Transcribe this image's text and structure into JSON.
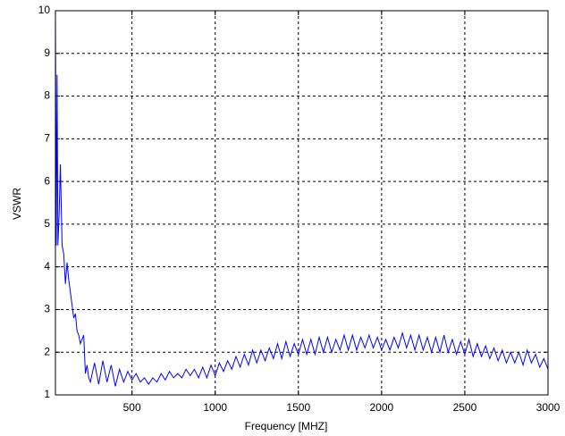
{
  "chart_data": {
    "type": "line",
    "x_label": "Frequency [MHZ]",
    "y_label": "VSWR",
    "xlim": [
      40,
      3000
    ],
    "ylim": [
      1,
      10
    ],
    "xticks": [
      500,
      1000,
      1500,
      2000,
      2500,
      3000
    ],
    "yticks": [
      1,
      2,
      3,
      4,
      5,
      6,
      7,
      8,
      9,
      10
    ],
    "grid": true,
    "series": [
      {
        "color": "#0000ff",
        "x": [
          40,
          45,
          50,
          55,
          62,
          70,
          80,
          90,
          100,
          110,
          120,
          130,
          140,
          150,
          160,
          170,
          180,
          190,
          200,
          210,
          220,
          230,
          240,
          250,
          275,
          300,
          325,
          350,
          375,
          400,
          425,
          450,
          475,
          500,
          525,
          550,
          575,
          600,
          625,
          650,
          675,
          700,
          725,
          750,
          775,
          800,
          825,
          850,
          875,
          900,
          925,
          950,
          975,
          1000,
          1025,
          1050,
          1075,
          1100,
          1125,
          1150,
          1175,
          1200,
          1225,
          1250,
          1275,
          1300,
          1325,
          1350,
          1375,
          1400,
          1425,
          1450,
          1475,
          1500,
          1525,
          1550,
          1575,
          1600,
          1625,
          1650,
          1675,
          1700,
          1725,
          1750,
          1775,
          1800,
          1825,
          1850,
          1875,
          1900,
          1925,
          1950,
          1975,
          2000,
          2025,
          2050,
          2075,
          2100,
          2125,
          2150,
          2175,
          2200,
          2225,
          2250,
          2275,
          2300,
          2325,
          2350,
          2375,
          2400,
          2425,
          2450,
          2475,
          2500,
          2525,
          2550,
          2575,
          2600,
          2625,
          2650,
          2675,
          2700,
          2725,
          2750,
          2775,
          2800,
          2825,
          2850,
          2875,
          2900,
          2925,
          2950,
          2975,
          3000
        ],
        "values": [
          10,
          4.5,
          8.5,
          4.5,
          5.2,
          6.4,
          4.5,
          4.3,
          3.6,
          4.1,
          3.7,
          3.4,
          3.1,
          2.8,
          2.9,
          2.5,
          2.4,
          2.2,
          2.3,
          2.4,
          1.5,
          1.7,
          1.4,
          1.3,
          1.75,
          1.25,
          1.8,
          1.3,
          1.7,
          1.2,
          1.6,
          1.3,
          1.55,
          1.35,
          1.5,
          1.3,
          1.4,
          1.25,
          1.4,
          1.3,
          1.5,
          1.35,
          1.55,
          1.4,
          1.5,
          1.4,
          1.6,
          1.45,
          1.6,
          1.4,
          1.65,
          1.4,
          1.7,
          1.45,
          1.75,
          1.55,
          1.8,
          1.6,
          1.9,
          1.65,
          1.95,
          1.7,
          2.05,
          1.75,
          2.05,
          1.8,
          2.1,
          1.85,
          2.2,
          1.85,
          2.25,
          1.9,
          2.2,
          1.95,
          2.3,
          1.95,
          2.3,
          1.95,
          2.35,
          2.0,
          2.35,
          2.0,
          2.3,
          2.05,
          2.4,
          2.05,
          2.4,
          2.05,
          2.35,
          2.1,
          2.4,
          2.1,
          2.35,
          2.05,
          2.3,
          2.05,
          2.35,
          2.1,
          2.45,
          2.1,
          2.4,
          2.05,
          2.4,
          2.05,
          2.35,
          2.0,
          2.35,
          2.0,
          2.4,
          2.0,
          2.3,
          1.95,
          2.25,
          1.95,
          2.3,
          1.9,
          2.2,
          1.9,
          2.15,
          1.85,
          2.1,
          1.8,
          2.05,
          1.75,
          2.0,
          1.75,
          2.0,
          1.7,
          2.05,
          1.75,
          1.95,
          1.65,
          1.85,
          1.6
        ]
      }
    ]
  }
}
